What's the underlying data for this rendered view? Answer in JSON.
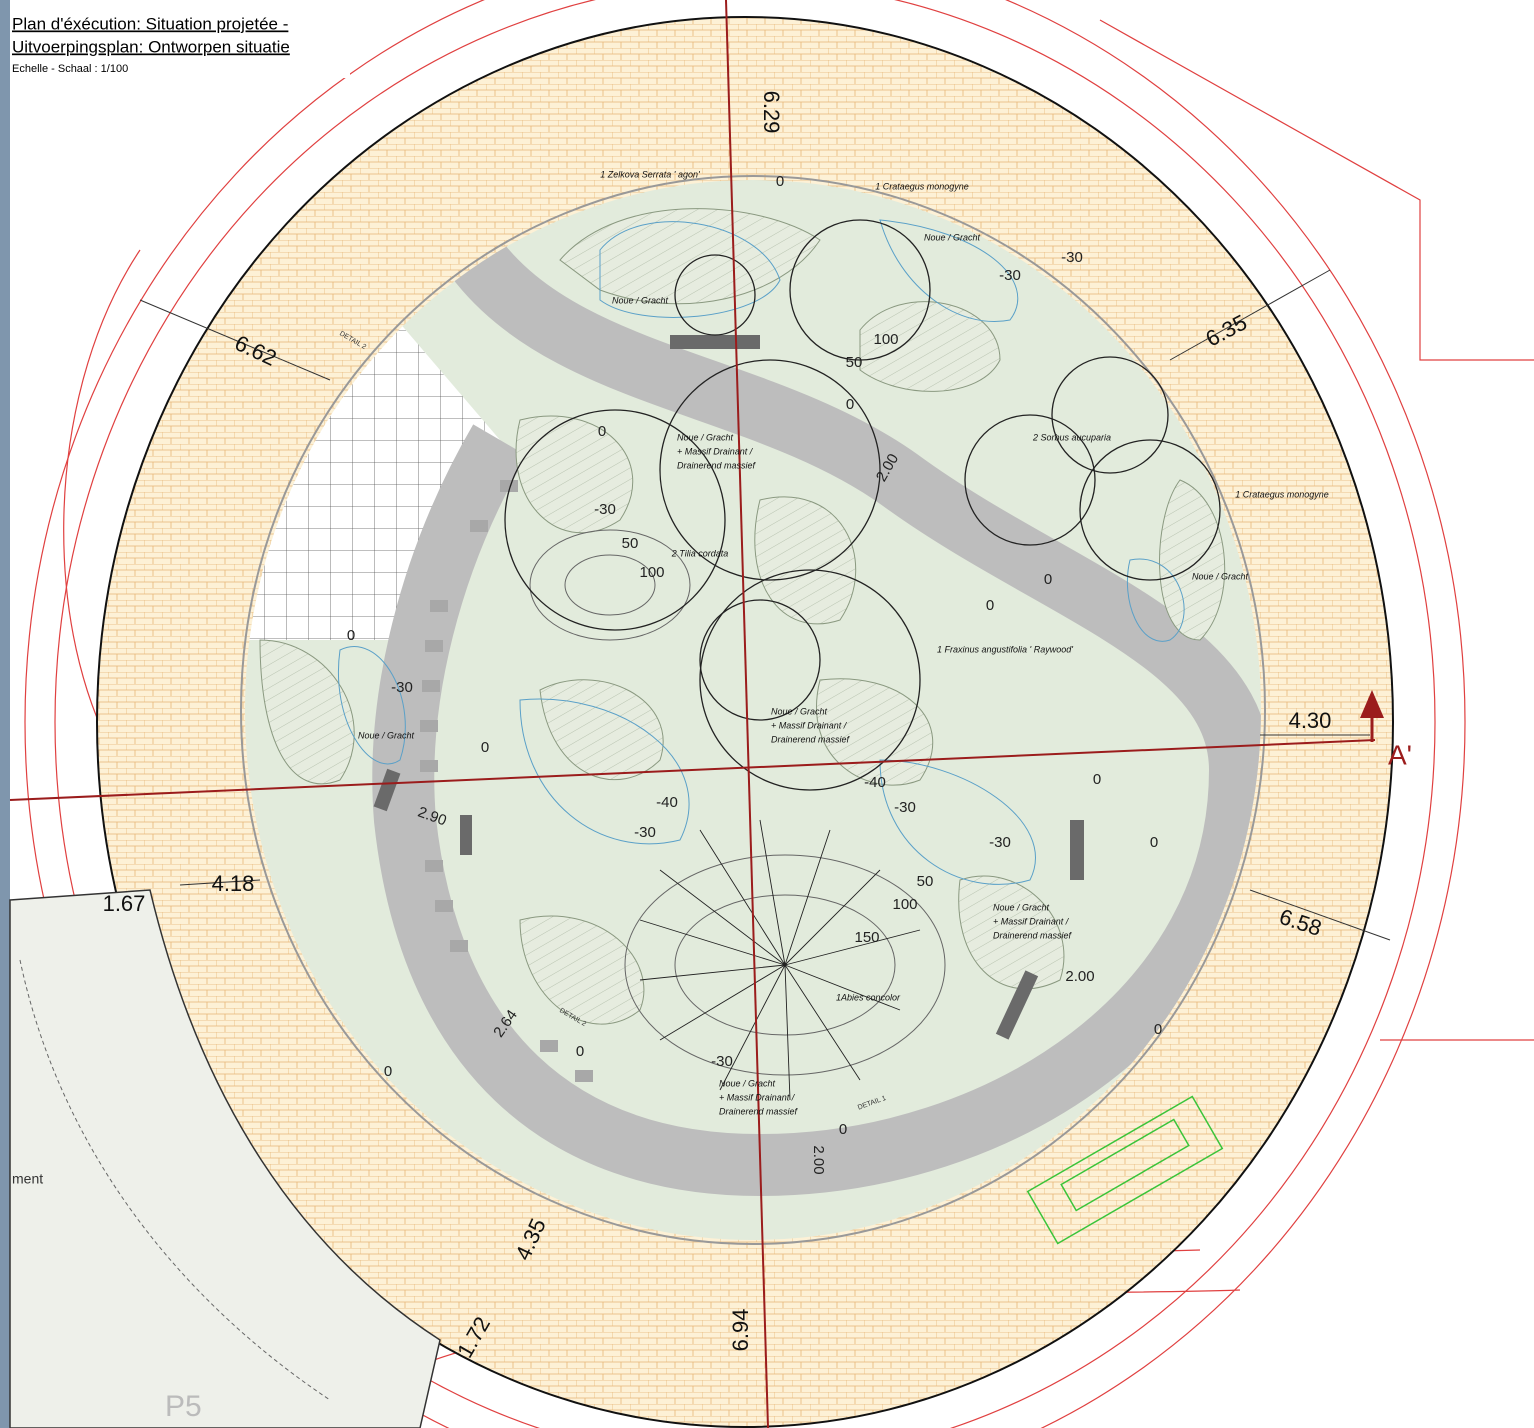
{
  "header": {
    "title_fr": "Plan d'éxécution: Situation projetée  -",
    "title_nl": "Uitvoerpingsplan: Ontworpen situatie",
    "scale": "Echelle - Schaal : 1/100"
  },
  "dimensions": [
    "6.29",
    "6.62",
    "6.35",
    "4.30",
    "4.18",
    "1.67",
    "6.58",
    "4.35",
    "1.72",
    "6.94",
    "2.00",
    "2.90",
    "2.64",
    "2.00",
    "2.00"
  ],
  "section_marker": "A'",
  "plants": [
    "1 Zelkova Serrata ' agon'",
    "1 Crataegus monogyne",
    "2 Sorbus aucuparia",
    "1 Crataegus monogyne",
    "2 Tilia cordata",
    "1 Fraxinus angustifolia ' Raywood'",
    "1Abies concolor"
  ],
  "swales": [
    [
      "Noue / Gracht"
    ],
    [
      "Noue / Gracht"
    ],
    [
      "Noue / Gracht"
    ],
    [
      "Noue / Gracht"
    ],
    [
      "Noue / Gracht",
      "+ Massif Drainant /",
      "Drainerend massief"
    ],
    [
      "Noue / Gracht",
      "+ Massif Drainant /",
      "Drainerend massief"
    ],
    [
      "Noue / Gracht",
      "+ Massif Drainant /",
      "Drainerend massief"
    ],
    [
      "Noue / Gracht",
      "+ Massif Drainant /",
      "Drainerend massief"
    ]
  ],
  "levels": [
    "0",
    "-30",
    "0",
    "50",
    "100",
    "0",
    "-30",
    "50",
    "100",
    "0",
    "0",
    "0",
    "-30",
    "0",
    "-30",
    "0",
    "-40",
    "-30",
    "-40",
    "-30",
    "0",
    "-30",
    "50",
    "100",
    "150",
    "0",
    "-30",
    "0",
    "0",
    "0"
  ],
  "details": [
    "DETAIL 2",
    "DETAIL 2",
    "DETAIL 1"
  ],
  "parking": "P5",
  "fragment": "ment"
}
